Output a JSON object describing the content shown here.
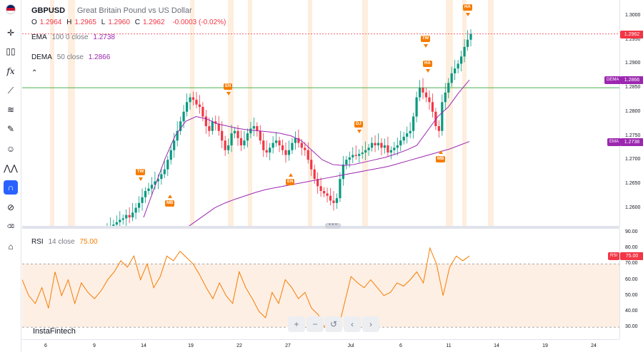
{
  "symbol": {
    "ticker": "GBPUSD",
    "description": "Great Britain Pound vs US Dollar",
    "o_label": "O",
    "o": "1.2964",
    "h_label": "H",
    "h": "1.2965",
    "l_label": "L",
    "l": "1.2960",
    "c_label": "C",
    "c": "1.2962",
    "change": "-0.0003 (-0.02%)"
  },
  "indicators": {
    "ema": {
      "name": "EMA",
      "params": "100 0 close",
      "value": "1.2738"
    },
    "dema": {
      "name": "DEMA",
      "params": "50 close",
      "value": "1.2866"
    },
    "rsi": {
      "name": "RSI",
      "params": "14 close",
      "value": "75.00"
    }
  },
  "price_scale": [
    "1.3000",
    "1.2950",
    "1.2900",
    "1.2850",
    "1.2800",
    "1.2750",
    "1.2700",
    "1.2650",
    "1.2600"
  ],
  "price_tags": {
    "current": "1.2962",
    "dema_tag": "DEMA",
    "dema": "1.2866",
    "ema_tag": "EMA",
    "ema": "1.2738"
  },
  "rsi_scale": [
    "90.00",
    "80.00",
    "70.00",
    "60.00",
    "50.00",
    "40.00",
    "30.00"
  ],
  "rsi_tag": {
    "label": "RSI",
    "value": "75.00"
  },
  "time_axis": [
    "6",
    "9",
    "14",
    "19",
    "22",
    "27",
    "Jul",
    "6",
    "11",
    "14",
    "19",
    "24"
  ],
  "markers": [
    {
      "label": "TW",
      "dir": "down"
    },
    {
      "label": "MB",
      "dir": "up"
    },
    {
      "label": "EN",
      "dir": "down"
    },
    {
      "label": "EN",
      "dir": "up"
    },
    {
      "label": "DJ",
      "dir": "down"
    },
    {
      "label": "TW",
      "dir": "down"
    },
    {
      "label": "HA",
      "dir": "down"
    },
    {
      "label": "MB",
      "dir": "up"
    },
    {
      "label": "HA",
      "dir": "down"
    }
  ],
  "watermark": "InstaFintech",
  "colors": {
    "up": "#089981",
    "down": "#f23645",
    "ema": "#9c27b0",
    "dema": "#9c27b0",
    "rsi": "#f57c00",
    "accent": "#2962ff",
    "marker": "#f57c00",
    "hline": "#4caf50"
  },
  "chart_data": {
    "type": "candlestick",
    "title": "GBPUSD",
    "ylim": [
      1.256,
      1.303
    ],
    "rsi_ylim": [
      25,
      92
    ],
    "hline": 1.285,
    "candles_ohlc_note": "daily-intraday approximation",
    "close": [
      1.254,
      1.2548,
      1.2552,
      1.256,
      1.2565,
      1.257,
      1.2575,
      1.2578,
      1.2585,
      1.258,
      1.259,
      1.26,
      1.261,
      1.2622,
      1.2635,
      1.264,
      1.2648,
      1.2655,
      1.266,
      1.267,
      1.268,
      1.27,
      1.272,
      1.274,
      1.276,
      1.278,
      1.28,
      1.282,
      1.283,
      1.2825,
      1.2815,
      1.281,
      1.279,
      1.277,
      1.276,
      1.278,
      1.2775,
      1.276,
      1.274,
      1.272,
      1.273,
      1.2755,
      1.276,
      1.2745,
      1.273,
      1.274,
      1.2755,
      1.2765,
      1.277,
      1.276,
      1.274,
      1.272,
      1.2715,
      1.2725,
      1.2735,
      1.274,
      1.273,
      1.272,
      1.271,
      1.272,
      1.2735,
      1.2745,
      1.2735,
      1.2725,
      1.272,
      1.27,
      1.268,
      1.266,
      1.2645,
      1.2635,
      1.263,
      1.2625,
      1.2615,
      1.261,
      1.262,
      1.266,
      1.269,
      1.27,
      1.2705,
      1.271,
      1.2708,
      1.2712,
      1.2715,
      1.272,
      1.2725,
      1.2735,
      1.273,
      1.2735,
      1.2725,
      1.273,
      1.2715,
      1.272,
      1.2725,
      1.273,
      1.274,
      1.2748,
      1.2755,
      1.276,
      1.279,
      1.283,
      1.285,
      1.284,
      1.283,
      1.282,
      1.28,
      1.277,
      1.276,
      1.282,
      1.284,
      1.286,
      1.288,
      1.289,
      1.29,
      1.2915,
      1.2935,
      1.295,
      1.2962
    ],
    "ema": [
      1.248,
      1.25,
      1.252,
      1.254,
      1.2555,
      1.257,
      1.2585,
      1.26,
      1.261,
      1.2618,
      1.2625,
      1.2632,
      1.2638,
      1.2642,
      1.2646,
      1.265,
      1.2654,
      1.2658,
      1.2662,
      1.2666,
      1.267,
      1.2674,
      1.2678,
      1.2682,
      1.2686,
      1.2692,
      1.2698,
      1.2704,
      1.271,
      1.2716,
      1.2722,
      1.273,
      1.2738
    ],
    "dema": [
      1.258,
      1.264,
      1.27,
      1.275,
      1.278,
      1.279,
      1.2785,
      1.2775,
      1.277,
      1.2765,
      1.2762,
      1.276,
      1.2758,
      1.2755,
      1.275,
      1.274,
      1.272,
      1.27,
      1.269,
      1.2688,
      1.269,
      1.2695,
      1.27,
      1.2705,
      1.2712,
      1.272,
      1.273,
      1.276,
      1.279,
      1.281,
      1.284,
      1.2866
    ],
    "rsi": [
      60,
      50,
      45,
      55,
      42,
      65,
      50,
      60,
      45,
      58,
      52,
      48,
      53,
      60,
      65,
      72,
      68,
      75,
      60,
      70,
      55,
      62,
      75,
      72,
      78,
      74,
      70,
      63,
      55,
      48,
      58,
      50,
      45,
      65,
      55,
      48,
      40,
      36,
      52,
      45,
      60,
      55,
      48,
      52,
      42,
      38,
      30,
      35,
      28,
      45,
      62,
      58,
      55,
      60,
      55,
      50,
      52,
      58,
      56,
      60,
      65,
      58,
      80,
      70,
      50,
      68,
      75,
      72,
      75
    ]
  }
}
